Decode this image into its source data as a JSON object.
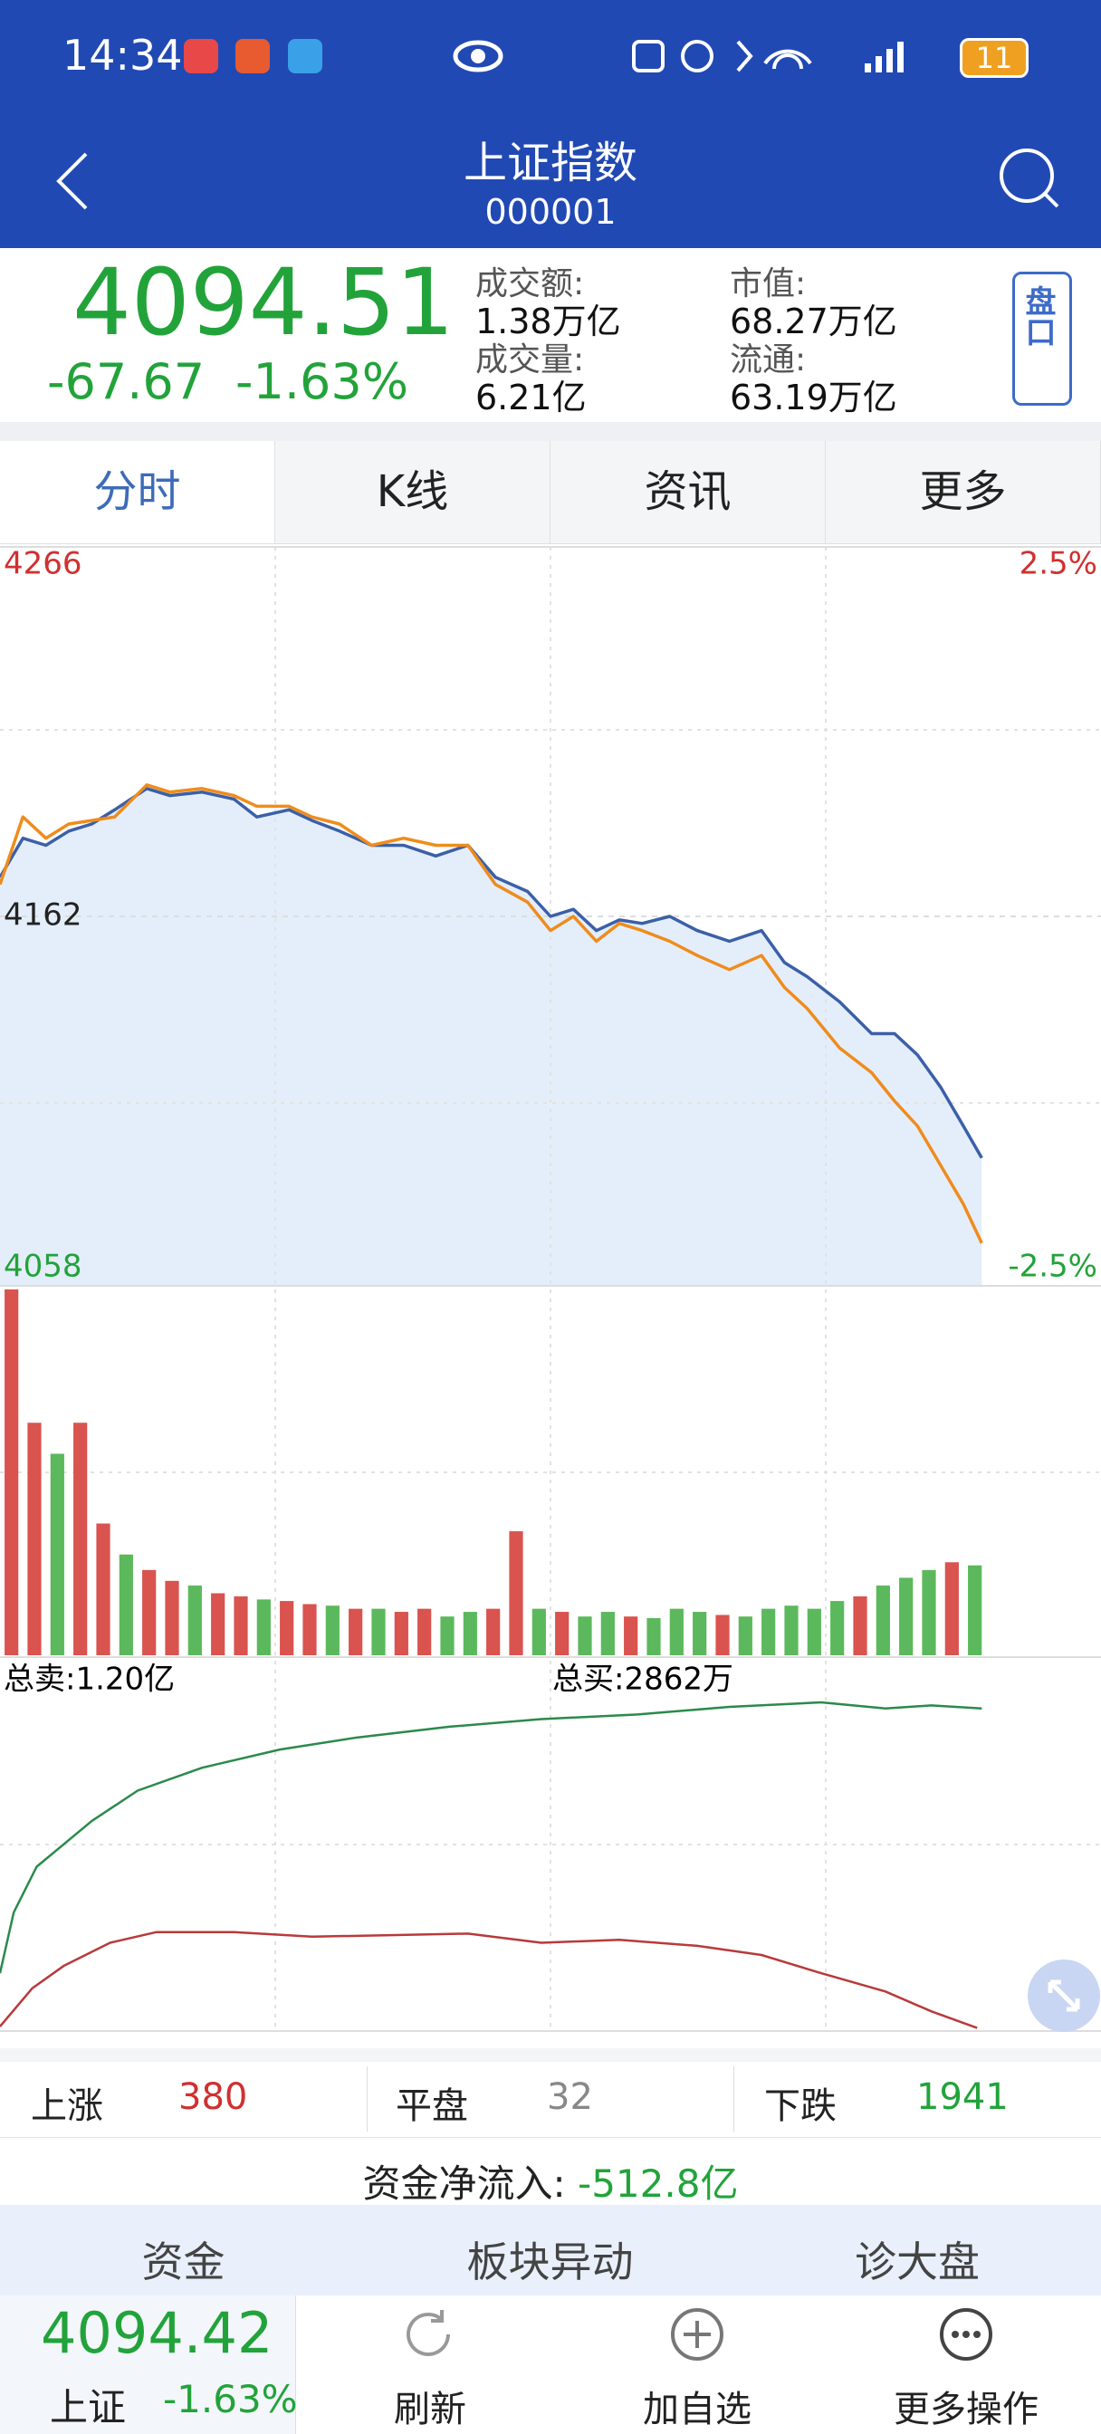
{
  "status_bar": {
    "time": "14:34",
    "battery": "11"
  },
  "header": {
    "title": "上证指数",
    "code": "000001"
  },
  "quote": {
    "price": "4094.51",
    "change": "-67.67",
    "change_pct": "-1.63%",
    "stats": [
      {
        "label": "成交额:",
        "value": "1.38万亿"
      },
      {
        "label": "市值:",
        "value": "68.27万亿"
      },
      {
        "label": "成交量:",
        "value": "6.21亿"
      },
      {
        "label": "流通:",
        "value": "63.19万亿"
      }
    ],
    "button": "盘口"
  },
  "tabs": [
    "分时",
    "K线",
    "资讯",
    "更多"
  ],
  "chart_data": [
    {
      "type": "line",
      "xlim": [
        0,
        240
      ],
      "x": [
        0,
        5,
        10,
        15,
        20,
        25,
        32,
        37,
        44,
        51,
        56,
        63,
        68,
        74,
        81,
        88,
        95,
        102,
        108,
        115,
        120,
        125,
        130,
        135,
        140,
        146,
        152,
        159,
        166,
        171,
        176,
        183,
        190,
        195,
        200,
        205,
        210,
        214
      ],
      "ylim": [
        4058,
        4266
      ],
      "yticks": [
        4058,
        4162,
        4266
      ],
      "y2lim": [
        -2.5,
        2.5
      ],
      "y2ticks": [
        {
          "value": -2.5,
          "label": "-2.5%"
        },
        {
          "value": 2.5,
          "label": "2.5%"
        }
      ],
      "series": [
        {
          "color": "#3b60a8",
          "fill": "#e4eefb",
          "values": [
            4173,
            4184,
            4182,
            4186,
            4188,
            4192,
            4198,
            4196,
            4197,
            4195,
            4190,
            4192,
            4189,
            4186,
            4182,
            4182,
            4179,
            4182,
            4173,
            4169,
            4162,
            4164,
            4158,
            4161,
            4160,
            4162,
            4158,
            4155,
            4158,
            4149,
            4145,
            4138,
            4129,
            4129,
            4123,
            4114,
            4103,
            4094
          ]
        },
        {
          "color": "#ef8c1c",
          "values": [
            4171,
            4190,
            4184,
            4188,
            4189,
            4190,
            4199,
            4197,
            4198,
            4196,
            4193,
            4193,
            4190,
            4188,
            4182,
            4184,
            4182,
            4182,
            4171,
            4166,
            4158,
            4162,
            4155,
            4160,
            4158,
            4155,
            4151,
            4147,
            4151,
            4142,
            4136,
            4125,
            4118,
            4110,
            4103,
            4092,
            4081,
            4070
          ]
        }
      ]
    },
    {
      "type": "bar",
      "xlim": [
        0,
        240
      ],
      "x": [
        0,
        5,
        10,
        15,
        20,
        25,
        30,
        35,
        40,
        45,
        50,
        55,
        60,
        65,
        70,
        75,
        80,
        85,
        90,
        95,
        100,
        105,
        110,
        115,
        120,
        125,
        130,
        135,
        140,
        145,
        150,
        155,
        160,
        165,
        170,
        175,
        180,
        185,
        190,
        195,
        200,
        205,
        210
      ],
      "values": [
        236,
        150,
        130,
        150,
        85,
        65,
        55,
        48,
        45,
        40,
        38,
        36,
        35,
        33,
        32,
        30,
        30,
        28,
        30,
        25,
        28,
        30,
        80,
        30,
        28,
        25,
        28,
        25,
        24,
        30,
        28,
        26,
        25,
        30,
        32,
        30,
        35,
        38,
        45,
        50,
        55,
        60,
        58
      ],
      "colors": [
        "#d9534f",
        "#d9534f",
        "#5cb85c",
        "#d9534f",
        "#d9534f",
        "#5cb85c",
        "#d9534f",
        "#d9534f",
        "#5cb85c",
        "#d9534f",
        "#d9534f",
        "#5cb85c",
        "#d9534f",
        "#d9534f",
        "#5cb85c",
        "#d9534f",
        "#5cb85c",
        "#d9534f",
        "#d9534f",
        "#5cb85c",
        "#5cb85c",
        "#d9534f",
        "#d9534f",
        "#5cb85c",
        "#d9534f",
        "#5cb85c",
        "#5cb85c",
        "#d9534f",
        "#5cb85c",
        "#5cb85c",
        "#5cb85c",
        "#d9534f",
        "#5cb85c",
        "#5cb85c",
        "#5cb85c",
        "#5cb85c",
        "#5cb85c",
        "#d9534f",
        "#5cb85c",
        "#5cb85c",
        "#5cb85c",
        "#d9534f",
        "#5cb85c"
      ]
    },
    {
      "type": "line",
      "xlim": [
        0,
        240
      ],
      "annotations": [
        "总卖:1.20亿",
        "总买:2862万"
      ],
      "series": [
        {
          "color": "#2a8a4a",
          "x": [
            0,
            3,
            8,
            14,
            20,
            30,
            44,
            61,
            78,
            98,
            118,
            139,
            159,
            179,
            193,
            203,
            214
          ],
          "values": [
            38,
            78,
            108,
            123,
            138,
            158,
            173,
            185,
            193,
            200,
            205,
            208,
            213,
            216,
            212,
            214,
            212
          ]
        },
        {
          "color": "#b83a3a",
          "x": [
            0,
            7,
            14,
            24,
            34,
            51,
            68,
            85,
            102,
            118,
            135,
            152,
            166,
            179,
            193,
            203,
            213
          ],
          "values": [
            3,
            28,
            43,
            58,
            65,
            65,
            62,
            63,
            64,
            58,
            60,
            56,
            50,
            38,
            26,
            13,
            2
          ]
        }
      ]
    }
  ],
  "breadth": {
    "up_label": "上涨",
    "up": 380,
    "flat_label": "平盘",
    "flat": 32,
    "down_label": "下跌",
    "down": 1941
  },
  "net_flow": {
    "label": "资金净流入:",
    "value": "-512.8亿"
  },
  "bottom_tabs": [
    "资金",
    "板块异动",
    "诊大盘"
  ],
  "footer": {
    "price": "4094.42",
    "name": "上证",
    "change_pct": "-1.63%",
    "actions": [
      "刷新",
      "加自选",
      "更多操作"
    ]
  }
}
